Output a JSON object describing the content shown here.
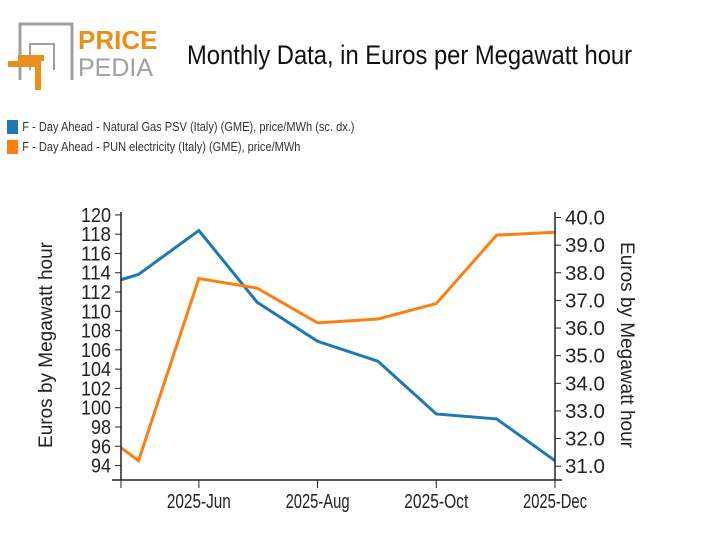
{
  "logo": {
    "text_top": "PRICE",
    "text_bottom": "PEDIA",
    "colors": {
      "orange": "#e8901a",
      "gray": "#a0a0a0"
    }
  },
  "title": "Monthly Data, in Euros per Megawatt hour",
  "legend": [
    {
      "label": "F - Day Ahead - Natural Gas PSV (Italy) (GME), price/MWh (sc. dx.)",
      "color": "#1f77b4"
    },
    {
      "label": "F - Day Ahead - PUN electricity (Italy) (GME), price/MWh",
      "color": "#ff7f0e"
    }
  ],
  "chart_data": {
    "type": "line",
    "title": "Monthly Data, in Euros per Megawatt hour",
    "x": [
      "2025-04",
      "2025-05",
      "2025-06",
      "2025-07",
      "2025-08",
      "2025-09",
      "2025-10",
      "2025-11",
      "2025-12"
    ],
    "xlim": [
      "2025-04-22",
      "2025-12-01"
    ],
    "xticks": [
      "2025-Jun",
      "2025-Aug",
      "2025-Oct",
      "2025-Dec"
    ],
    "ylabel_left": "Euros by Megawatt hour",
    "ylabel_right": "Euros by Megawatt hour",
    "ylim_left": [
      92.5,
      120.3
    ],
    "ylim_right": [
      30.5,
      40.2
    ],
    "yticks_left": [
      "94",
      "96",
      "98",
      "100",
      "102",
      "104",
      "106",
      "108",
      "110",
      "112",
      "114",
      "116",
      "118",
      "120"
    ],
    "yticks_right": [
      "31.0",
      "32.0",
      "33.0",
      "34.0",
      "35.0",
      "36.0",
      "37.0",
      "38.0",
      "39.0",
      "40.0"
    ],
    "grid": false,
    "legend_position": "top-left",
    "series": [
      {
        "name": "F - Day Ahead - Natural Gas PSV (Italy) (GME), price/MWh (sc. dx.)",
        "axis": "right",
        "color": "#1f77b4",
        "values": [
          37.3,
          37.94,
          39.53,
          36.93,
          35.52,
          34.8,
          32.89,
          32.71,
          31.2
        ]
      },
      {
        "name": "F - Day Ahead - PUN electricity (Italy) (GME), price/MWh",
        "axis": "left",
        "color": "#ff7f0e",
        "values": [
          99.0,
          94.5,
          113.4,
          112.4,
          108.8,
          109.2,
          110.8,
          117.9,
          118.2
        ]
      }
    ]
  }
}
